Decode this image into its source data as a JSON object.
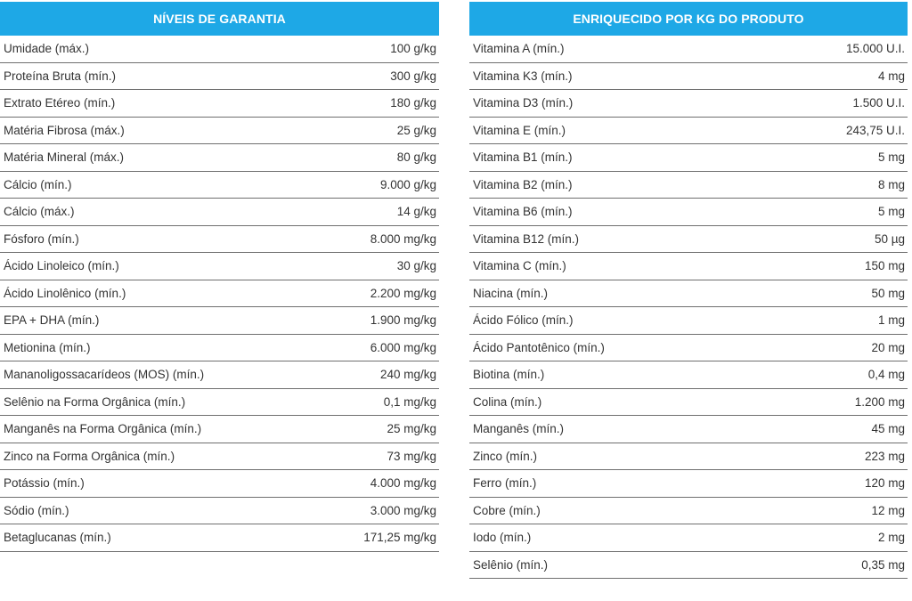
{
  "left": {
    "header": "NÍVEIS DE GARANTIA",
    "rows": [
      {
        "label": "Umidade (máx.)",
        "value": "100 g/kg"
      },
      {
        "label": "Proteína Bruta (mín.)",
        "value": "300 g/kg"
      },
      {
        "label": "Extrato Etéreo (mín.)",
        "value": "180 g/kg"
      },
      {
        "label": "Matéria Fibrosa (máx.)",
        "value": "25 g/kg"
      },
      {
        "label": "Matéria Mineral (máx.)",
        "value": "80 g/kg"
      },
      {
        "label": "Cálcio (mín.)",
        "value": "9.000 g/kg"
      },
      {
        "label": "Cálcio (máx.)",
        "value": "14 g/kg"
      },
      {
        "label": "Fósforo (mín.)",
        "value": "8.000 mg/kg"
      },
      {
        "label": "Ácido Linoleico (mín.)",
        "value": "30 g/kg"
      },
      {
        "label": "Ácido Linolênico (mín.)",
        "value": "2.200 mg/kg"
      },
      {
        "label": "EPA + DHA (mín.)",
        "value": "1.900 mg/kg"
      },
      {
        "label": "Metionina (mín.)",
        "value": "6.000 mg/kg"
      },
      {
        "label": "Mananoligossacarídeos (MOS) (mín.)",
        "value": "240 mg/kg"
      },
      {
        "label": "Selênio na Forma Orgânica (mín.)",
        "value": "0,1 mg/kg"
      },
      {
        "label": "Manganês na Forma Orgânica (mín.)",
        "value": "25 mg/kg"
      },
      {
        "label": "Zinco na Forma Orgânica (mín.)",
        "value": "73 mg/kg"
      },
      {
        "label": "Potássio (mín.)",
        "value": "4.000 mg/kg"
      },
      {
        "label": "Sódio (mín.)",
        "value": "3.000 mg/kg"
      },
      {
        "label": "Betaglucanas (mín.)",
        "value": "171,25 mg/kg"
      }
    ]
  },
  "right": {
    "header": "ENRIQUECIDO POR KG DO PRODUTO",
    "rows": [
      {
        "label": "Vitamina A (mín.)",
        "value": "15.000 U.I."
      },
      {
        "label": "Vitamina K3 (mín.)",
        "value": "4 mg"
      },
      {
        "label": "Vitamina D3 (mín.)",
        "value": "1.500 U.I."
      },
      {
        "label": "Vitamina E (mín.)",
        "value": "243,75 U.I."
      },
      {
        "label": "Vitamina B1 (mín.)",
        "value": "5 mg"
      },
      {
        "label": "Vitamina B2 (mín.)",
        "value": "8 mg"
      },
      {
        "label": "Vitamina B6 (mín.)",
        "value": "5 mg"
      },
      {
        "label": "Vitamina B12 (mín.)",
        "value": "50 µg"
      },
      {
        "label": "Vitamina C (mín.)",
        "value": "150 mg"
      },
      {
        "label": "Niacina (mín.)",
        "value": "50 mg"
      },
      {
        "label": "Ácido Fólico (mín.)",
        "value": "1 mg"
      },
      {
        "label": "Ácido Pantotênico (mín.)",
        "value": "20 mg"
      },
      {
        "label": "Biotina (mín.)",
        "value": "0,4 mg"
      },
      {
        "label": "Colina (mín.)",
        "value": "1.200 mg"
      },
      {
        "label": "Manganês (mín.)",
        "value": "45 mg"
      },
      {
        "label": "Zinco (mín.)",
        "value": "223 mg"
      },
      {
        "label": "Ferro (mín.)",
        "value": "120 mg"
      },
      {
        "label": "Cobre (mín.)",
        "value": "12 mg"
      },
      {
        "label": "Iodo (mín.)",
        "value": "2 mg"
      },
      {
        "label": "Selênio (mín.)",
        "value": "0,35 mg"
      }
    ]
  },
  "colors": {
    "header_bg": "#1ea8e6",
    "header_text": "#ffffff",
    "row_text": "#333333",
    "row_divider": "#6f6f6f"
  }
}
